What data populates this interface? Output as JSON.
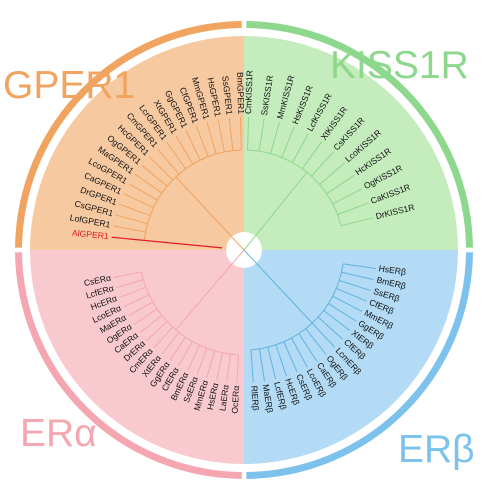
{
  "figure": {
    "clades": [
      {
        "id": "gper1",
        "label": "GPER1",
        "fill": "#f7c9a1",
        "stroke": "#f0a45f",
        "branch": "#f0a45f",
        "leaves": [
          "AlGPER1",
          "LofGPER1",
          "CsGPER1",
          "DrGPER1",
          "CaGPER1",
          "LcoGPER1",
          "MaGPER1",
          "OgGPER1",
          "HcGPER1",
          "CmGPER1",
          "LcrGPER1",
          "XtGPER1",
          "GgGPER1",
          "CfGPER1",
          "MmGPER1",
          "HsGPER1",
          "SsGPER1",
          "BmGPER1"
        ],
        "highlight": "AlGPER1"
      },
      {
        "id": "kiss1r",
        "label": "KISS1R",
        "fill": "#c4ecbc",
        "stroke": "#8ed88d",
        "branch": "#8ed88d",
        "leaves": [
          "CmKISS1R",
          "SsKISS1R",
          "MmKISS1R",
          "HsKISS1R",
          "LcfKISS1R",
          "XtKISS1R",
          "CsKISS1R",
          "LcoKISS1R",
          "HcKISS1R",
          "OgKISS1R",
          "CaKISS1R",
          "DrKISS1R"
        ]
      },
      {
        "id": "erb",
        "label": "ERβ",
        "fill": "#b3dbf5",
        "stroke": "#7cc2ec",
        "branch": "#62b2de",
        "leaves": [
          "HsERβ",
          "BmERβ",
          "SsERβ",
          "CfERβ",
          "MmERβ",
          "GgERβ",
          "XtERβ",
          "CfERβ",
          "LcmERβ",
          "OgERβ",
          "CaERβ",
          "LcoERβ",
          "CsERβ",
          "HcERβ",
          "LcfERβ",
          "MaERβ",
          "RlERβ"
        ]
      },
      {
        "id": "era",
        "label": "ERα",
        "fill": "#f8c9cf",
        "stroke": "#f4a7b1",
        "branch": "#f4a7b1",
        "leaves": [
          "OcERα",
          "LaERα",
          "HsERα",
          "MmERα",
          "SsERα",
          "BmERα",
          "CfERα",
          "GgERα",
          "XtERα",
          "CmERα",
          "DrERα",
          "CaERα",
          "OgERα",
          "MaERα",
          "LcoERα",
          "HcERα",
          "LcfERα",
          "CsERα"
        ]
      }
    ]
  }
}
